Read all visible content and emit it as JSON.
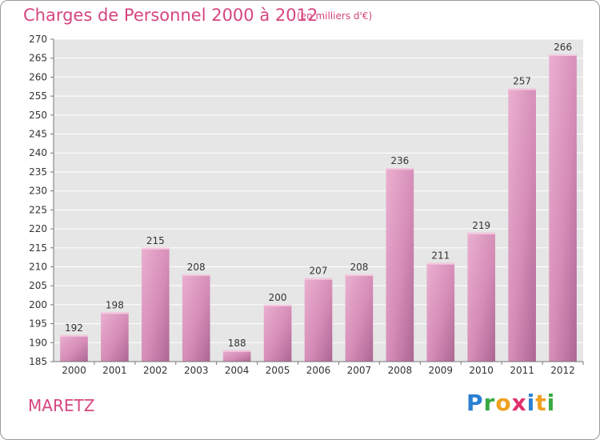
{
  "header": {
    "title": "Charges de Personnel 2000 à 2012",
    "subtitle": "(en milliers d'€)"
  },
  "footer": {
    "place": "MARETZ",
    "logo": {
      "text": "Proxiti",
      "letters": [
        {
          "char": "P",
          "color": "#2a7fd1"
        },
        {
          "char": "r",
          "color": "#38a843"
        },
        {
          "char": "o",
          "color": "#f0a020"
        },
        {
          "char": "x",
          "color": "#e0306a"
        },
        {
          "char": "i",
          "color": "#2a7fd1"
        },
        {
          "char": "t",
          "color": "#f0a020"
        },
        {
          "char": "i",
          "color": "#38a843"
        }
      ]
    }
  },
  "colors": {
    "accent": "#d6457f",
    "plot_bg": "#e6e6e6",
    "bar_light": "#e9a7cb",
    "bar_dark": "#b86a9a"
  },
  "chart_data": {
    "type": "bar",
    "categories": [
      "2000",
      "2001",
      "2002",
      "2003",
      "2004",
      "2005",
      "2006",
      "2007",
      "2008",
      "2009",
      "2010",
      "2011",
      "2012"
    ],
    "values": [
      192,
      198,
      215,
      208,
      188,
      200,
      207,
      208,
      236,
      211,
      219,
      257,
      266
    ],
    "ylim": [
      185,
      270
    ],
    "ystep": 5,
    "grid": true,
    "legend": "none"
  }
}
